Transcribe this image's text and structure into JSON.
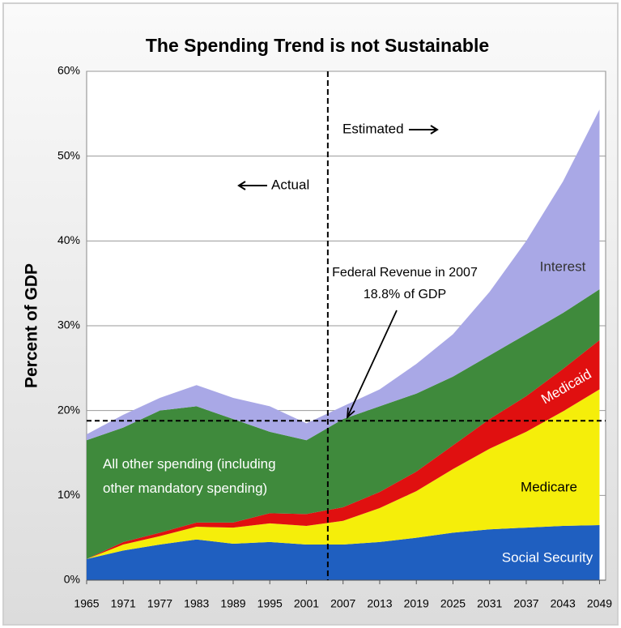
{
  "chart_data": {
    "type": "stacked_area",
    "title": "The Spending Trend is not Sustainable",
    "y_label": "Percent of GDP",
    "x": [
      1965,
      1971,
      1977,
      1983,
      1989,
      1995,
      2001,
      2007,
      2013,
      2019,
      2025,
      2031,
      2037,
      2043,
      2049
    ],
    "series": [
      {
        "name": "Social Security",
        "color": "#1f5fc0",
        "values": [
          2.5,
          3.5,
          4.2,
          4.8,
          4.3,
          4.5,
          4.2,
          4.2,
          4.5,
          5.0,
          5.6,
          6.0,
          6.2,
          6.4,
          6.5
        ]
      },
      {
        "name": "Medicare",
        "color": "#f5ee0a",
        "values": [
          0,
          0.7,
          1.0,
          1.5,
          1.9,
          2.2,
          2.2,
          2.8,
          4.0,
          5.5,
          7.5,
          9.5,
          11.3,
          13.5,
          16.0
        ]
      },
      {
        "name": "Medicaid",
        "color": "#e01010",
        "values": [
          0,
          0.3,
          0.4,
          0.5,
          0.6,
          1.2,
          1.4,
          1.6,
          1.9,
          2.3,
          2.8,
          3.5,
          4.2,
          5.0,
          5.8
        ]
      },
      {
        "name": "All other spending (including other mandatory spending)",
        "color": "#3f8a3c",
        "values": [
          14.0,
          13.5,
          14.4,
          13.7,
          12.2,
          9.6,
          8.7,
          10.4,
          10.1,
          9.2,
          8.1,
          7.5,
          7.3,
          6.6,
          6.0
        ]
      },
      {
        "name": "Interest",
        "color": "#a9a8e6",
        "values": [
          0.7,
          1.5,
          1.5,
          2.5,
          2.5,
          3.0,
          2.0,
          1.5,
          2.0,
          3.5,
          5.0,
          7.5,
          11.0,
          15.5,
          21.2
        ]
      }
    ],
    "xlim": [
      1965,
      2050
    ],
    "xticks": [
      1965,
      1971,
      1977,
      1983,
      1989,
      1995,
      2001,
      2007,
      2013,
      2019,
      2025,
      2031,
      2037,
      2043,
      2049
    ],
    "ylim": [
      0,
      60
    ],
    "yticks": [
      {
        "value": 0,
        "label": "0%"
      },
      {
        "value": 10,
        "label": "10%"
      },
      {
        "value": 20,
        "label": "20%"
      },
      {
        "value": 30,
        "label": "30%"
      },
      {
        "value": 40,
        "label": "40%"
      },
      {
        "value": 50,
        "label": "50%"
      },
      {
        "value": 60,
        "label": "60%"
      }
    ],
    "grid": true,
    "reference_line": 18.8,
    "estimate_start": 2004.5,
    "annotations": {
      "estimated": "Estimated",
      "actual": "Actual",
      "revenue": "Federal Revenue in 2007",
      "revenue_value": "18.8% of GDP"
    }
  }
}
